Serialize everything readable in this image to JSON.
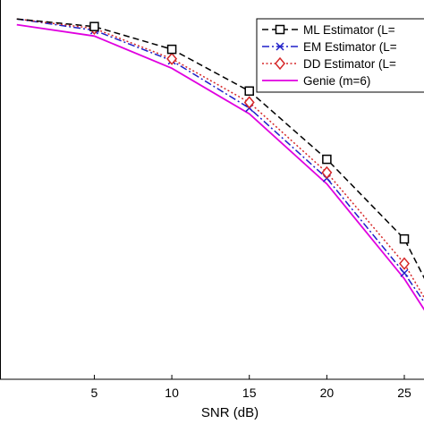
{
  "chart_data": {
    "type": "line",
    "title": "",
    "xlabel": "SNR (dB)",
    "ylabel": "",
    "xlim": [
      -1.2,
      26.5
    ],
    "ylim": [
      0,
      100
    ],
    "xticks": [
      5,
      10,
      15,
      20,
      25
    ],
    "grid": false,
    "legend_position": "top-right",
    "series": [
      {
        "name": "ML Estimator (L=",
        "color": "#000000",
        "line_style": "dashed",
        "marker": "square",
        "x": [
          0,
          5,
          10,
          15,
          20,
          25,
          26.5
        ],
        "y": [
          95,
          93,
          87,
          76,
          58,
          37,
          25
        ]
      },
      {
        "name": "EM Estimator (L=",
        "color": "#1f1fc8",
        "line_style": "dash-dot",
        "marker": "x",
        "x": [
          0,
          5,
          10,
          15,
          20,
          25,
          26.5
        ],
        "y": [
          95,
          92,
          84,
          71.5,
          53,
          28,
          19
        ]
      },
      {
        "name": "DD Estimator (L=",
        "color": "#d62728",
        "line_style": "dotted",
        "marker": "diamond",
        "x": [
          0,
          5,
          10,
          15,
          20,
          25,
          26.5
        ],
        "y": [
          95,
          92.5,
          84.5,
          73,
          54.5,
          30.5,
          20
        ]
      },
      {
        "name": "Genie (m=6)",
        "color": "#e000e0",
        "line_style": "solid",
        "marker": "none",
        "x": [
          0,
          5,
          10,
          15,
          20,
          25,
          26.5
        ],
        "y": [
          93.5,
          90.5,
          82,
          70,
          51.5,
          26.5,
          17
        ]
      }
    ]
  }
}
